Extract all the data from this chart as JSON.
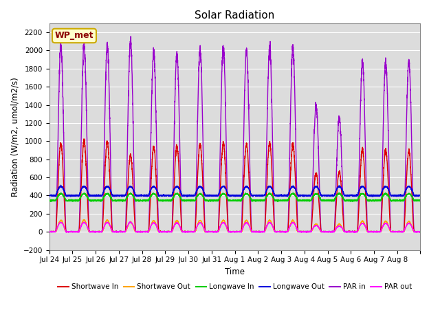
{
  "title": "Solar Radiation",
  "xlabel": "Time",
  "ylabel": "Radiation (W/m2, umol/m2/s)",
  "ylim": [
    -200,
    2300
  ],
  "yticks": [
    -200,
    0,
    200,
    400,
    600,
    800,
    1000,
    1200,
    1400,
    1600,
    1800,
    2000,
    2200
  ],
  "bg_color": "#dcdcdc",
  "fig_color": "#ffffff",
  "annotation_text": "WP_met",
  "annotation_color": "#8b0000",
  "annotation_bg": "#ffffcc",
  "annotation_border": "#ccaa00",
  "series": {
    "shortwave_in": {
      "color": "#dd0000",
      "label": "Shortwave In",
      "lw": 1.0
    },
    "shortwave_out": {
      "color": "#ffa500",
      "label": "Shortwave Out",
      "lw": 1.0
    },
    "longwave_in": {
      "color": "#00cc00",
      "label": "Longwave In",
      "lw": 1.0
    },
    "longwave_out": {
      "color": "#0000dd",
      "label": "Longwave Out",
      "lw": 1.0
    },
    "par_in": {
      "color": "#9900cc",
      "label": "PAR in",
      "lw": 1.0
    },
    "par_out": {
      "color": "#ff00ff",
      "label": "PAR out",
      "lw": 1.0
    }
  },
  "n_days": 16,
  "pts_per_day": 288,
  "tick_labels": [
    "Jul 24",
    "Jul 25",
    "Jul 26",
    "Jul 27",
    "Jul 28",
    "Jul 29",
    "Jul 30",
    "Jul 31",
    "Aug 1",
    "Aug 2",
    "Aug 3",
    "Aug 4",
    "Aug 5",
    "Aug 6",
    "Aug 7",
    "Aug 8"
  ],
  "day_peaks_sw_in": [
    980,
    1000,
    990,
    850,
    940,
    950,
    970,
    980,
    960,
    980,
    960,
    650,
    660,
    910,
    900,
    890
  ],
  "day_peaks_par_in": [
    2050,
    2050,
    2050,
    2100,
    1970,
    1950,
    2010,
    2020,
    1990,
    2030,
    2030,
    1390,
    1260,
    1870,
    1870,
    1870
  ],
  "lw_in_base": 345,
  "lw_out_base": 400,
  "lw_in_daytime_peak": 420,
  "lw_out_daytime_peak": 500,
  "grid_color": "#ffffff",
  "grid_lw": 0.8
}
